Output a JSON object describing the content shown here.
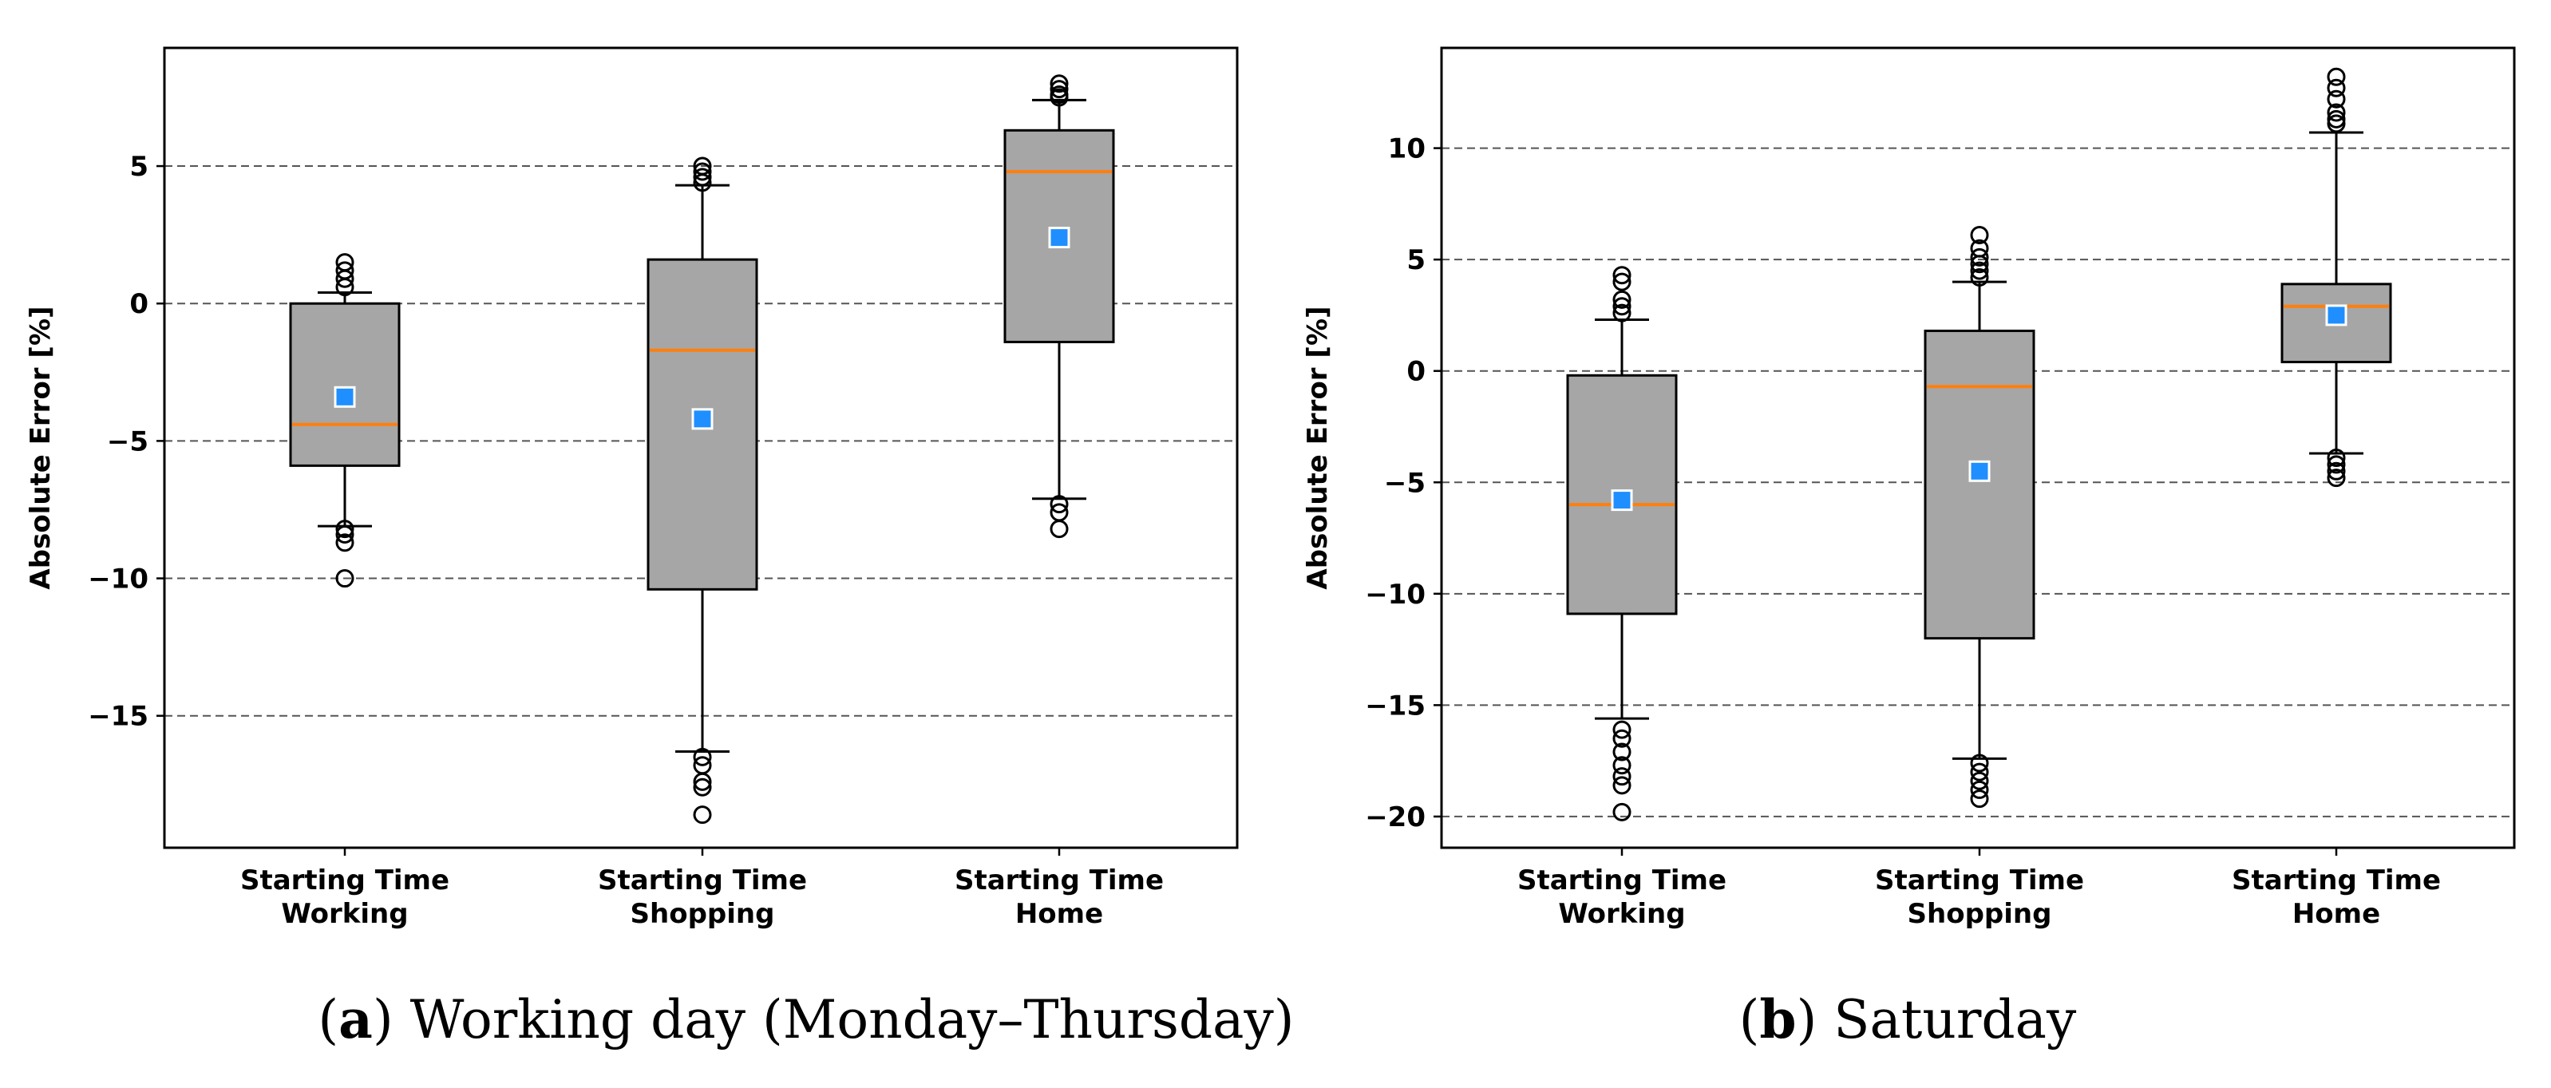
{
  "chart_data": [
    {
      "type": "box",
      "caption": {
        "letter": "a",
        "text": "Working day (Monday–Thursday)"
      },
      "ylabel": "Absolute Error [%]",
      "ylim": [
        -19.8,
        9.3
      ],
      "yticks": [
        5,
        0,
        -5,
        -10,
        -15
      ],
      "ytick_labels": [
        "5",
        "0",
        "−5",
        "−10",
        "−15"
      ],
      "grid": "horizontal dashed",
      "categories": [
        [
          "Starting Time",
          "Working"
        ],
        [
          "Starting Time",
          "Shopping"
        ],
        [
          "Starting Time",
          "Home"
        ]
      ],
      "boxes": [
        {
          "whisker_low": -8.1,
          "q1": -5.9,
          "median": -4.4,
          "q3": 0.0,
          "whisker_high": 0.4,
          "mean": -3.4,
          "outliers": [
            1.5,
            1.2,
            0.9,
            0.6,
            -8.2,
            -8.4,
            -8.7,
            -10.0
          ]
        },
        {
          "whisker_low": -16.3,
          "q1": -10.4,
          "median": -1.7,
          "q3": 1.6,
          "whisker_high": 4.3,
          "mean": -4.2,
          "outliers": [
            5.0,
            4.8,
            4.6,
            4.4,
            -16.5,
            -16.8,
            -17.4,
            -17.6,
            -18.6
          ]
        },
        {
          "whisker_low": -7.1,
          "q1": -1.4,
          "median": 4.8,
          "q3": 6.3,
          "whisker_high": 7.4,
          "mean": 2.4,
          "outliers": [
            8.0,
            7.8,
            7.6,
            7.5,
            -7.3,
            -7.6,
            -8.2
          ]
        }
      ]
    },
    {
      "type": "box",
      "caption": {
        "letter": "b",
        "text": "Saturday"
      },
      "ylabel": "Absolute Error [%]",
      "ylim": [
        -21.4,
        14.5
      ],
      "yticks": [
        10,
        5,
        0,
        -5,
        -10,
        -15,
        -20
      ],
      "ytick_labels": [
        "10",
        "5",
        "0",
        "−5",
        "−10",
        "−15",
        "−20"
      ],
      "grid": "horizontal dashed",
      "categories": [
        [
          "Starting Time",
          "Working"
        ],
        [
          "Starting Time",
          "Shopping"
        ],
        [
          "Starting Time",
          "Home"
        ]
      ],
      "boxes": [
        {
          "whisker_low": -15.6,
          "q1": -10.9,
          "median": -6.0,
          "q3": -0.2,
          "whisker_high": 2.3,
          "mean": -5.8,
          "outliers": [
            4.3,
            4.0,
            3.2,
            2.9,
            2.6,
            -16.1,
            -16.5,
            -17.1,
            -17.7,
            -18.2,
            -18.6,
            -19.8
          ]
        },
        {
          "whisker_low": -17.4,
          "q1": -12.0,
          "median": -0.7,
          "q3": 1.8,
          "whisker_high": 4.0,
          "mean": -4.5,
          "outliers": [
            6.1,
            5.5,
            5.1,
            4.8,
            4.5,
            4.2,
            -17.6,
            -18.0,
            -18.4,
            -18.8,
            -19.2
          ]
        },
        {
          "whisker_low": -3.7,
          "q1": 0.4,
          "median": 2.9,
          "q3": 3.9,
          "whisker_high": 10.7,
          "mean": 2.5,
          "outliers": [
            13.2,
            12.7,
            12.2,
            11.6,
            11.3,
            11.1,
            -3.9,
            -4.2,
            -4.5,
            -4.8
          ]
        }
      ]
    }
  ]
}
